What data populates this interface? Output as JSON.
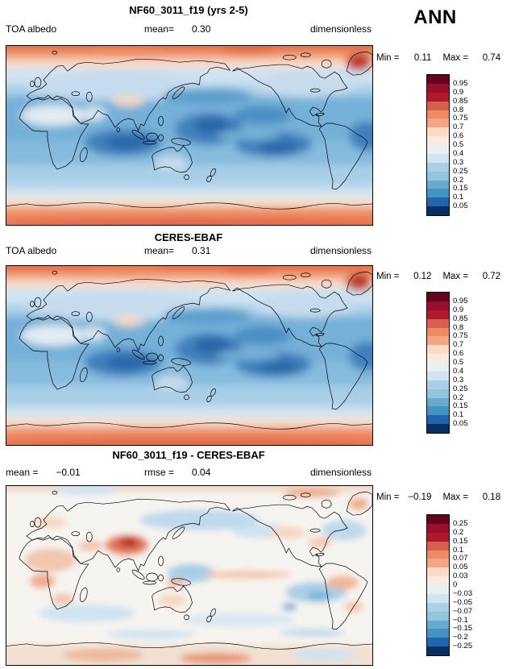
{
  "annotation": {
    "season": "ANN"
  },
  "palette": {
    "figure_background": "#ffffff",
    "colors": [
      "#67001f",
      "#9b0f2e",
      "#b2182b",
      "#d6604d",
      "#ef8a62",
      "#f4a582",
      "#fddbc7",
      "#faeae0",
      "#e8f0f6",
      "#d1e5f0",
      "#abd0e6",
      "#92c5de",
      "#67a9cf",
      "#4393c3",
      "#2166ac",
      "#053061"
    ]
  },
  "panels": [
    {
      "name": "model",
      "title": "NF60_3011_f19 (yrs 2-5)",
      "header": {
        "left_label": "TOA albedo",
        "left_value": "",
        "center_label": "mean=",
        "center_value": "0.30",
        "right": "dimensionless"
      },
      "stats": {
        "min_label": "Min =",
        "min_value": "0.11",
        "max_label": "Max =",
        "max_value": "0.74"
      },
      "colorbar_ticks": [
        "0.95",
        "0.9",
        "0.85",
        "0.8",
        "0.75",
        "0.7",
        "0.6",
        "0.5",
        "0.4",
        "0.3",
        "0.25",
        "0.2",
        "0.15",
        "0.1",
        "0.05"
      ]
    },
    {
      "name": "observations",
      "title": "CERES-EBAF",
      "header": {
        "left_label": "TOA albedo",
        "left_value": "",
        "center_label": "mean=",
        "center_value": "0.31",
        "right": "dimensionless"
      },
      "stats": {
        "min_label": "Min =",
        "min_value": "0.12",
        "max_label": "Max =",
        "max_value": "0.72"
      },
      "colorbar_ticks": [
        "0.95",
        "0.9",
        "0.85",
        "0.8",
        "0.75",
        "0.7",
        "0.6",
        "0.5",
        "0.4",
        "0.3",
        "0.25",
        "0.2",
        "0.15",
        "0.1",
        "0.05"
      ]
    },
    {
      "name": "difference",
      "title": "NF60_3011_f19 - CERES-EBAF",
      "header": {
        "left_label": "mean =",
        "left_value": "−0.01",
        "center_label": "rmse =",
        "center_value": "0.04",
        "right": "dimensionless"
      },
      "stats": {
        "min_label": "Min =",
        "min_value": "−0.19",
        "max_label": "Max =",
        "max_value": "0.18"
      },
      "colorbar_ticks": [
        "0.25",
        "0.2",
        "0.15",
        "0.1",
        "0.07",
        "0.05",
        "0.03",
        "0",
        "−0.03",
        "−0.05",
        "−0.07",
        "−0.1",
        "−0.15",
        "−0.2",
        "−0.25"
      ]
    }
  ],
  "chart_data": [
    {
      "type": "heatmap",
      "subtype": "global filled-contour map (cylindrical equidistant, Pacific-centered)",
      "title": "NF60_3011_f19 (yrs 2-5)",
      "variable": "TOA albedo",
      "units": "dimensionless",
      "season": "ANN",
      "mean": 0.3,
      "min": 0.11,
      "max": 0.74,
      "contour_levels": [
        0.05,
        0.1,
        0.15,
        0.2,
        0.25,
        0.3,
        0.4,
        0.5,
        0.6,
        0.7,
        0.75,
        0.8,
        0.85,
        0.9,
        0.95
      ],
      "colormap": "16-class red(high)→white→blue(low); polar ice high albedo (red/orange), tropical oceans low albedo (dark blue)"
    },
    {
      "type": "heatmap",
      "subtype": "global filled-contour map (cylindrical equidistant, Pacific-centered)",
      "title": "CERES-EBAF",
      "variable": "TOA albedo",
      "units": "dimensionless",
      "season": "ANN",
      "mean": 0.31,
      "min": 0.12,
      "max": 0.72,
      "contour_levels": [
        0.05,
        0.1,
        0.15,
        0.2,
        0.25,
        0.3,
        0.4,
        0.5,
        0.6,
        0.7,
        0.75,
        0.8,
        0.85,
        0.9,
        0.95
      ],
      "colormap": "16-class red(high)→white→blue(low)"
    },
    {
      "type": "heatmap",
      "subtype": "global filled-contour difference map (model minus observations)",
      "title": "NF60_3011_f19 - CERES-EBAF",
      "variable": "TOA albedo difference",
      "units": "dimensionless",
      "season": "ANN",
      "mean": -0.01,
      "rmse": 0.04,
      "min": -0.19,
      "max": 0.18,
      "contour_levels": [
        -0.25,
        -0.2,
        -0.15,
        -0.1,
        -0.07,
        -0.05,
        -0.03,
        0,
        0.03,
        0.05,
        0.07,
        0.1,
        0.15,
        0.2,
        0.25
      ],
      "colormap": "16-class red(positive)→white→blue(negative); mostly near zero with positive bias over S/Central Asia and Africa, negative patches over oceans"
    }
  ]
}
